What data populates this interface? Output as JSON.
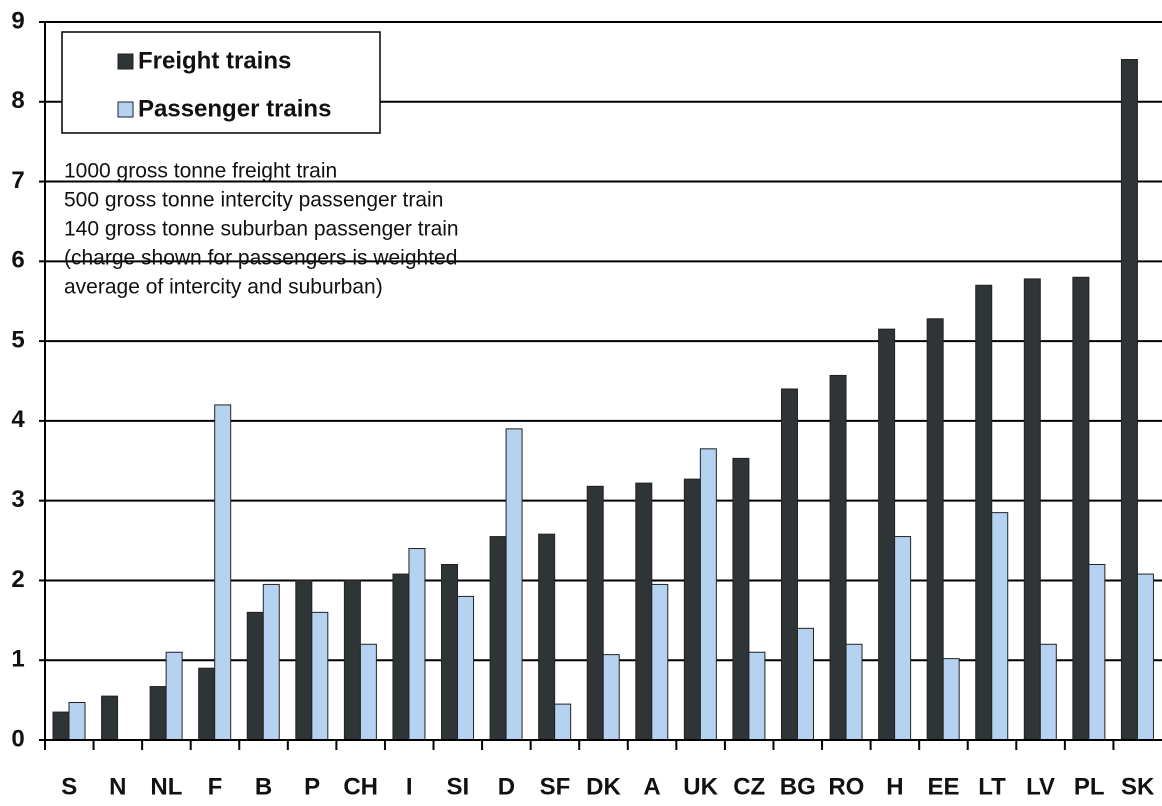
{
  "chart_data": {
    "type": "bar",
    "categories": [
      "S",
      "N",
      "NL",
      "F",
      "B",
      "P",
      "CH",
      "I",
      "SI",
      "D",
      "SF",
      "DK",
      "A",
      "UK",
      "CZ",
      "BG",
      "RO",
      "H",
      "EE",
      "LT",
      "LV",
      "PL",
      "SK"
    ],
    "series": [
      {
        "name": "Freight trains",
        "color": "#2f3436",
        "values": [
          0.35,
          0.55,
          0.67,
          0.9,
          1.6,
          2.0,
          2.0,
          2.08,
          2.2,
          2.55,
          2.58,
          3.18,
          3.22,
          3.27,
          3.53,
          4.4,
          4.57,
          5.15,
          5.28,
          5.7,
          5.78,
          5.8,
          8.53
        ]
      },
      {
        "name": "Passenger trains",
        "color": "#b5d3f0",
        "values": [
          0.47,
          null,
          1.1,
          4.2,
          1.95,
          1.6,
          1.2,
          2.4,
          1.8,
          3.9,
          0.45,
          1.07,
          1.95,
          3.65,
          1.1,
          1.4,
          1.2,
          2.55,
          1.02,
          2.85,
          1.2,
          2.2,
          2.08
        ]
      }
    ],
    "annotation": [
      "1000 gross tonne freight train",
      "500 gross tonne intercity passenger train",
      "140 gross tonne suburban passenger train",
      "(charge shown for passengers is weighted",
      "average of intercity and suburban)"
    ],
    "ylim": [
      0,
      9
    ],
    "yticks": [
      0,
      1,
      2,
      3,
      4,
      5,
      6,
      7,
      8,
      9
    ],
    "grid": true,
    "legend": "top-left"
  }
}
